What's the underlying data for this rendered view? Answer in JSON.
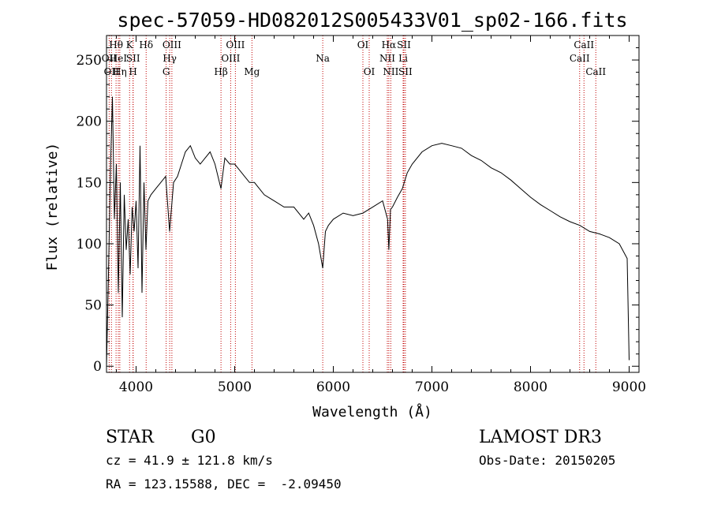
{
  "chart_data": {
    "type": "line",
    "title": "spec-57059-HD082012S005433V01_sp02-166.fits",
    "xlabel": "Wavelength (Å)",
    "ylabel": "Flux (relative)",
    "xlim": [
      3700,
      9100
    ],
    "ylim": [
      -5,
      270
    ],
    "xticks": [
      4000,
      5000,
      6000,
      7000,
      8000,
      9000
    ],
    "yticks": [
      0,
      50,
      100,
      150,
      200,
      250
    ],
    "grid": false,
    "series": [
      {
        "name": "flux",
        "x": [
          3700,
          3720,
          3740,
          3760,
          3780,
          3800,
          3820,
          3840,
          3860,
          3880,
          3900,
          3920,
          3940,
          3960,
          3980,
          4000,
          4020,
          4040,
          4060,
          4080,
          4100,
          4120,
          4150,
          4200,
          4250,
          4300,
          4340,
          4380,
          4420,
          4460,
          4500,
          4550,
          4600,
          4650,
          4700,
          4750,
          4800,
          4861,
          4900,
          4950,
          5000,
          5050,
          5100,
          5150,
          5200,
          5300,
          5400,
          5500,
          5600,
          5700,
          5750,
          5800,
          5850,
          5893,
          5920,
          5950,
          6000,
          6100,
          6200,
          6300,
          6400,
          6500,
          6550,
          6563,
          6580,
          6600,
          6650,
          6700,
          6750,
          6800,
          6900,
          7000,
          7100,
          7200,
          7300,
          7400,
          7500,
          7600,
          7700,
          7800,
          7900,
          8000,
          8100,
          8200,
          8300,
          8400,
          8500,
          8600,
          8700,
          8800,
          8900,
          8980,
          9000
        ],
        "y": [
          0,
          75,
          160,
          220,
          120,
          165,
          60,
          150,
          40,
          140,
          95,
          120,
          75,
          130,
          110,
          135,
          80,
          180,
          60,
          150,
          95,
          135,
          140,
          145,
          150,
          155,
          110,
          150,
          155,
          165,
          175,
          180,
          170,
          165,
          170,
          175,
          165,
          145,
          170,
          165,
          165,
          160,
          155,
          150,
          150,
          140,
          135,
          130,
          130,
          120,
          125,
          115,
          100,
          80,
          110,
          115,
          120,
          125,
          123,
          125,
          130,
          135,
          120,
          95,
          128,
          130,
          138,
          145,
          158,
          165,
          175,
          180,
          182,
          180,
          178,
          172,
          168,
          162,
          158,
          152,
          145,
          138,
          132,
          127,
          122,
          118,
          115,
          110,
          108,
          105,
          100,
          88,
          5
        ]
      }
    ],
    "line_markers": [
      {
        "label": "Hθ",
        "x": 3797,
        "row": 0
      },
      {
        "label": "OII",
        "x": 3727,
        "row": 1
      },
      {
        "label": "OII",
        "x": 3750,
        "row": 2
      },
      {
        "label": "HeI",
        "x": 3820,
        "row": 1
      },
      {
        "label": "Hη",
        "x": 3835,
        "row": 2
      },
      {
        "label": "K",
        "x": 3934,
        "row": 0
      },
      {
        "label": "SII",
        "x": 3970,
        "row": 1
      },
      {
        "label": "H",
        "x": 3969,
        "row": 2
      },
      {
        "label": "Hδ",
        "x": 4102,
        "row": 0
      },
      {
        "label": "OIII",
        "x": 4363,
        "row": 0
      },
      {
        "label": "Hγ",
        "x": 4341,
        "row": 1
      },
      {
        "label": "G",
        "x": 4305,
        "row": 2
      },
      {
        "label": "OIII",
        "x": 5007,
        "row": 0
      },
      {
        "label": "OIII",
        "x": 4959,
        "row": 1
      },
      {
        "label": "Hβ",
        "x": 4861,
        "row": 2
      },
      {
        "label": "Mg",
        "x": 5175,
        "row": 2
      },
      {
        "label": "Na",
        "x": 5893,
        "row": 1
      },
      {
        "label": "OI",
        "x": 6300,
        "row": 0
      },
      {
        "label": "OI",
        "x": 6364,
        "row": 2
      },
      {
        "label": "Hα",
        "x": 6563,
        "row": 0
      },
      {
        "label": "SII",
        "x": 6716,
        "row": 0
      },
      {
        "label": "NII",
        "x": 6548,
        "row": 1
      },
      {
        "label": "Li",
        "x": 6708,
        "row": 1
      },
      {
        "label": "NII",
        "x": 6583,
        "row": 2
      },
      {
        "label": "SII",
        "x": 6731,
        "row": 2
      },
      {
        "label": "CaII",
        "x": 8542,
        "row": 0
      },
      {
        "label": "CaII",
        "x": 8498,
        "row": 1
      },
      {
        "label": "CaII",
        "x": 8662,
        "row": 2
      }
    ]
  },
  "info": {
    "object_class": "STAR",
    "subclass": "G0",
    "survey": "LAMOST DR3",
    "cz": "cz = 41.9 ± 121.8 km/s",
    "obs_date": "Obs-Date: 20150205",
    "coords": "RA = 123.15588, DEC =  -2.09450"
  },
  "colors": {
    "line": "#000000",
    "marker": "#c00000",
    "axis": "#000000",
    "background": "#ffffff"
  }
}
